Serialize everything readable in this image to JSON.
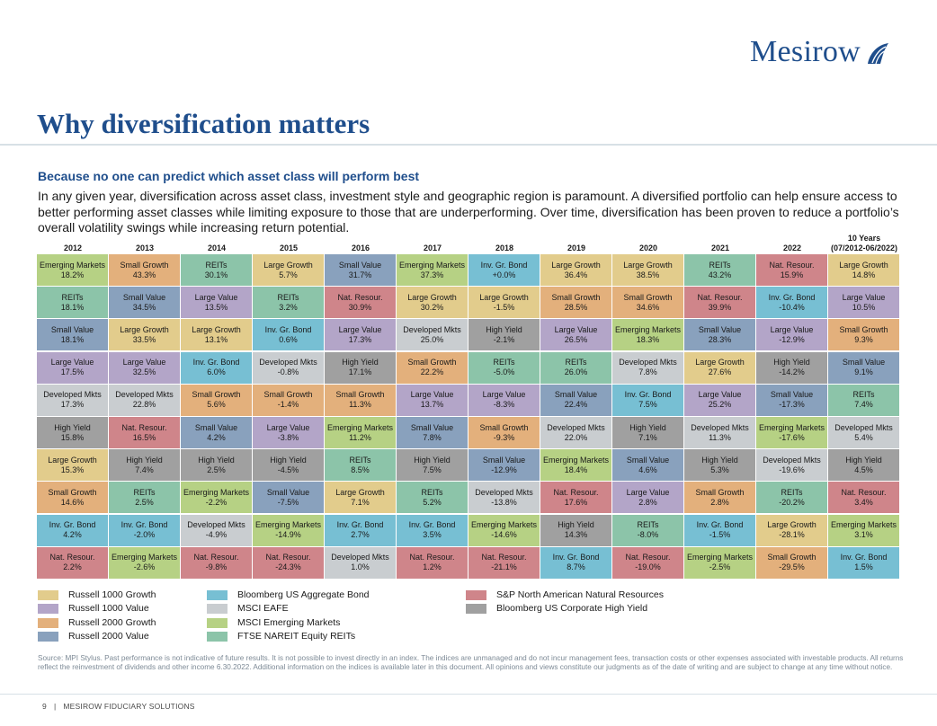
{
  "brand": {
    "name": "Mesirow",
    "color": "#1f4e8c"
  },
  "page": {
    "title": "Why diversification matters",
    "subtitle": "Because no one can predict which asset class will perform best",
    "intro": "In any given year, diversification across asset class, investment style and geographic region is paramount. A diversified portfolio can help ensure access to better performing asset classes while limiting exposure to those that are underperforming. Over time, diversification has been proven to reduce a portfolio’s overall volatility swings while increasing return potential."
  },
  "chart_data": {
    "type": "table",
    "title": "",
    "columns": [
      {
        "label": "2012",
        "sublabel": ""
      },
      {
        "label": "2013",
        "sublabel": ""
      },
      {
        "label": "2014",
        "sublabel": ""
      },
      {
        "label": "2015",
        "sublabel": ""
      },
      {
        "label": "2016",
        "sublabel": ""
      },
      {
        "label": "2017",
        "sublabel": ""
      },
      {
        "label": "2018",
        "sublabel": ""
      },
      {
        "label": "2019",
        "sublabel": ""
      },
      {
        "label": "2020",
        "sublabel": ""
      },
      {
        "label": "2021",
        "sublabel": ""
      },
      {
        "label": "2022",
        "sublabel": ""
      },
      {
        "label": "10 Years",
        "sublabel": "(07/2012-06/2022)"
      }
    ],
    "asset_classes": {
      "LG": {
        "name": "Large Growth",
        "index": "Russell 1000 Growth",
        "color": "#e2cc8c"
      },
      "LV": {
        "name": "Large Value",
        "index": "Russell 1000 Value",
        "color": "#b3a5c8"
      },
      "SG": {
        "name": "Small Growth",
        "index": "Russell 2000 Growth",
        "color": "#e3b07c"
      },
      "SV": {
        "name": "Small Value",
        "index": "Russell 2000 Value",
        "color": "#89a1bd"
      },
      "IG": {
        "name": "Inv. Gr. Bond",
        "index": "Bloomberg US Aggregate Bond",
        "color": "#77bfd3"
      },
      "DM": {
        "name": "Developed Mkts",
        "index": "MSCI EAFE",
        "color": "#c9cdd0"
      },
      "EM": {
        "name": "Emerging Markets",
        "index": "MSCI Emerging Markets",
        "color": "#b6d184"
      },
      "RE": {
        "name": "REITs",
        "index": "FTSE NAREIT Equity REITs",
        "color": "#8cc4a9"
      },
      "NR": {
        "name": "Nat. Resour.",
        "index": "S&P North American Natural Resources",
        "color": "#cf858a"
      },
      "HY": {
        "name": "High Yield",
        "index": "Bloomberg US Corporate High Yield",
        "color": "#a0a0a0"
      }
    },
    "rankings": [
      [
        {
          "c": "EM",
          "v": "18.2%"
        },
        {
          "c": "RE",
          "v": "18.1%"
        },
        {
          "c": "SV",
          "v": "18.1%"
        },
        {
          "c": "LV",
          "v": "17.5%"
        },
        {
          "c": "DM",
          "v": "17.3%"
        },
        {
          "c": "HY",
          "v": "15.8%"
        },
        {
          "c": "LG",
          "v": "15.3%"
        },
        {
          "c": "SG",
          "v": "14.6%"
        },
        {
          "c": "IG",
          "v": "4.2%"
        },
        {
          "c": "NR",
          "v": "2.2%"
        }
      ],
      [
        {
          "c": "SG",
          "v": "43.3%"
        },
        {
          "c": "SV",
          "v": "34.5%"
        },
        {
          "c": "LG",
          "v": "33.5%"
        },
        {
          "c": "LV",
          "v": "32.5%"
        },
        {
          "c": "DM",
          "v": "22.8%"
        },
        {
          "c": "NR",
          "v": "16.5%"
        },
        {
          "c": "HY",
          "v": "7.4%"
        },
        {
          "c": "RE",
          "v": "2.5%"
        },
        {
          "c": "IG",
          "v": "-2.0%"
        },
        {
          "c": "EM",
          "v": "-2.6%"
        }
      ],
      [
        {
          "c": "RE",
          "v": "30.1%"
        },
        {
          "c": "LV",
          "v": "13.5%"
        },
        {
          "c": "LG",
          "v": "13.1%"
        },
        {
          "c": "IG",
          "v": "6.0%"
        },
        {
          "c": "SG",
          "v": "5.6%"
        },
        {
          "c": "SV",
          "v": "4.2%"
        },
        {
          "c": "HY",
          "v": "2.5%"
        },
        {
          "c": "EM",
          "v": "-2.2%"
        },
        {
          "c": "DM",
          "v": "-4.9%"
        },
        {
          "c": "NR",
          "v": "-9.8%"
        }
      ],
      [
        {
          "c": "LG",
          "v": "5.7%"
        },
        {
          "c": "RE",
          "v": "3.2%"
        },
        {
          "c": "IG",
          "v": "0.6%"
        },
        {
          "c": "DM",
          "v": "-0.8%"
        },
        {
          "c": "SG",
          "v": "-1.4%"
        },
        {
          "c": "LV",
          "v": "-3.8%"
        },
        {
          "c": "HY",
          "v": "-4.5%"
        },
        {
          "c": "SV",
          "v": "-7.5%"
        },
        {
          "c": "EM",
          "v": "-14.9%"
        },
        {
          "c": "NR",
          "v": "-24.3%"
        }
      ],
      [
        {
          "c": "SV",
          "v": "31.7%"
        },
        {
          "c": "NR",
          "v": "30.9%"
        },
        {
          "c": "LV",
          "v": "17.3%"
        },
        {
          "c": "HY",
          "v": "17.1%"
        },
        {
          "c": "SG",
          "v": "11.3%"
        },
        {
          "c": "EM",
          "v": "11.2%"
        },
        {
          "c": "RE",
          "v": "8.5%"
        },
        {
          "c": "LG",
          "v": "7.1%"
        },
        {
          "c": "IG",
          "v": "2.7%"
        },
        {
          "c": "DM",
          "v": "1.0%"
        }
      ],
      [
        {
          "c": "EM",
          "v": "37.3%"
        },
        {
          "c": "LG",
          "v": "30.2%"
        },
        {
          "c": "DM",
          "v": "25.0%"
        },
        {
          "c": "SG",
          "v": "22.2%"
        },
        {
          "c": "LV",
          "v": "13.7%"
        },
        {
          "c": "SV",
          "v": "7.8%"
        },
        {
          "c": "HY",
          "v": "7.5%"
        },
        {
          "c": "RE",
          "v": "5.2%"
        },
        {
          "c": "IG",
          "v": "3.5%"
        },
        {
          "c": "NR",
          "v": "1.2%"
        }
      ],
      [
        {
          "c": "IG",
          "v": "+0.0%"
        },
        {
          "c": "LG",
          "v": "-1.5%"
        },
        {
          "c": "HY",
          "v": "-2.1%"
        },
        {
          "c": "RE",
          "v": "-5.0%"
        },
        {
          "c": "LV",
          "v": "-8.3%"
        },
        {
          "c": "SG",
          "v": "-9.3%"
        },
        {
          "c": "SV",
          "v": "-12.9%"
        },
        {
          "c": "DM",
          "v": "-13.8%"
        },
        {
          "c": "EM",
          "v": "-14.6%"
        },
        {
          "c": "NR",
          "v": "-21.1%"
        }
      ],
      [
        {
          "c": "LG",
          "v": "36.4%"
        },
        {
          "c": "SG",
          "v": "28.5%"
        },
        {
          "c": "LV",
          "v": "26.5%"
        },
        {
          "c": "RE",
          "v": "26.0%"
        },
        {
          "c": "SV",
          "v": "22.4%"
        },
        {
          "c": "DM",
          "v": "22.0%"
        },
        {
          "c": "EM",
          "v": "18.4%"
        },
        {
          "c": "NR",
          "v": "17.6%"
        },
        {
          "c": "HY",
          "v": "14.3%"
        },
        {
          "c": "IG",
          "v": "8.7%"
        }
      ],
      [
        {
          "c": "LG",
          "v": "38.5%"
        },
        {
          "c": "SG",
          "v": "34.6%"
        },
        {
          "c": "EM",
          "v": "18.3%"
        },
        {
          "c": "DM",
          "v": "7.8%"
        },
        {
          "c": "IG",
          "v": "7.5%"
        },
        {
          "c": "HY",
          "v": "7.1%"
        },
        {
          "c": "SV",
          "v": "4.6%"
        },
        {
          "c": "LV",
          "v": "2.8%"
        },
        {
          "c": "RE",
          "v": "-8.0%"
        },
        {
          "c": "NR",
          "v": "-19.0%"
        }
      ],
      [
        {
          "c": "RE",
          "v": "43.2%"
        },
        {
          "c": "NR",
          "v": "39.9%"
        },
        {
          "c": "SV",
          "v": "28.3%"
        },
        {
          "c": "LG",
          "v": "27.6%"
        },
        {
          "c": "LV",
          "v": "25.2%"
        },
        {
          "c": "DM",
          "v": "11.3%"
        },
        {
          "c": "HY",
          "v": "5.3%"
        },
        {
          "c": "SG",
          "v": "2.8%"
        },
        {
          "c": "IG",
          "v": "-1.5%"
        },
        {
          "c": "EM",
          "v": "-2.5%"
        }
      ],
      [
        {
          "c": "NR",
          "v": "15.9%"
        },
        {
          "c": "IG",
          "v": "-10.4%"
        },
        {
          "c": "LV",
          "v": "-12.9%"
        },
        {
          "c": "HY",
          "v": "-14.2%"
        },
        {
          "c": "SV",
          "v": "-17.3%"
        },
        {
          "c": "EM",
          "v": "-17.6%"
        },
        {
          "c": "DM",
          "v": "-19.6%"
        },
        {
          "c": "RE",
          "v": "-20.2%"
        },
        {
          "c": "LG",
          "v": "-28.1%"
        },
        {
          "c": "SG",
          "v": "-29.5%"
        }
      ],
      [
        {
          "c": "LG",
          "v": "14.8%"
        },
        {
          "c": "LV",
          "v": "10.5%"
        },
        {
          "c": "SG",
          "v": "9.3%"
        },
        {
          "c": "SV",
          "v": "9.1%"
        },
        {
          "c": "RE",
          "v": "7.4%"
        },
        {
          "c": "DM",
          "v": "5.4%"
        },
        {
          "c": "HY",
          "v": "4.5%"
        },
        {
          "c": "NR",
          "v": "3.4%"
        },
        {
          "c": "EM",
          "v": "3.1%"
        },
        {
          "c": "IG",
          "v": "1.5%"
        }
      ]
    ],
    "legend_order": [
      "LG",
      "LV",
      "SG",
      "SV",
      "IG",
      "DM",
      "EM",
      "RE",
      "NR",
      "HY"
    ]
  },
  "footnote": "Source: MPI Stylus. Past performance is not indicative of future results. It is not possible to invest directly in an index. The indices are unmanaged and do not incur management fees, transaction costs or other expenses associated with investable products. All returns reflect the reinvestment of dividends and other income 6.30.2022. Additional information on the indices is available later in this document. All opinions and views constitute our judgments as of the date of writing and are subject to change at any time without notice.",
  "footer": {
    "page_number": "9",
    "separator": "|",
    "company": "MESIROW FIDUCIARY SOLUTIONS"
  }
}
